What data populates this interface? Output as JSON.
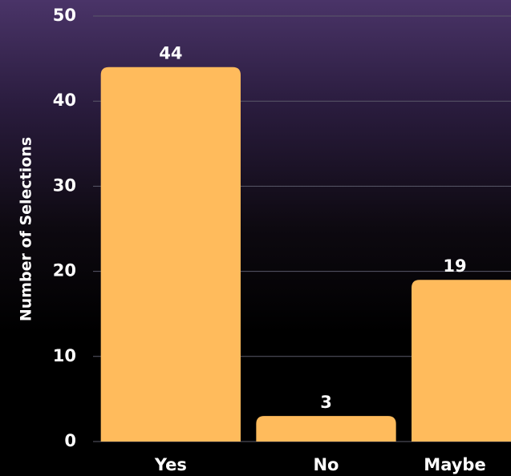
{
  "chart_data": {
    "type": "bar",
    "title": "",
    "xlabel": "",
    "ylabel": "Number of Selections",
    "categories": [
      "Yes",
      "No",
      "Maybe"
    ],
    "values": [
      44,
      3,
      19
    ],
    "ylim": [
      0,
      50
    ],
    "yticks": [
      0,
      10,
      20,
      30,
      40,
      50
    ],
    "grid": true,
    "legend": "none",
    "bar_color": "#FFBB5C",
    "gridline_color": "#5a5a6a",
    "text_color": "#ffffff"
  }
}
